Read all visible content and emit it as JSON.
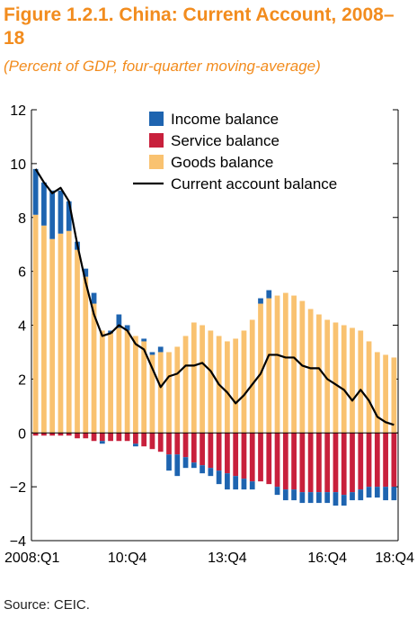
{
  "title": "Figure 1.2.1. China: Current Account, 2008–18",
  "subtitle": "(Percent of GDP, four-quarter moving-average)",
  "source": "Source: CEIC.",
  "colors": {
    "income": "#1E64B0",
    "service": "#C8203C",
    "goods": "#F9C270",
    "current": "#000000",
    "title": "#F28C1E"
  },
  "chart_data": {
    "type": "bar",
    "stacked": true,
    "ylim": [
      -4,
      12
    ],
    "yticks": [
      -4,
      -2,
      0,
      2,
      4,
      6,
      8,
      10,
      12
    ],
    "xtick_labels": [
      "2008:Q1",
      "10:Q4",
      "13:Q4",
      "16:Q4",
      "18:Q4"
    ],
    "xtick_index": [
      0,
      11,
      23,
      35,
      43
    ],
    "legend": [
      "Income balance",
      "Service balance",
      "Goods balance",
      "Current account balance"
    ],
    "categories": [
      "2008:Q1",
      "2008:Q2",
      "2008:Q3",
      "2008:Q4",
      "2009:Q1",
      "2009:Q2",
      "2009:Q3",
      "2009:Q4",
      "2010:Q1",
      "2010:Q2",
      "2010:Q3",
      "2010:Q4",
      "2011:Q1",
      "2011:Q2",
      "2011:Q3",
      "2011:Q4",
      "2012:Q1",
      "2012:Q2",
      "2012:Q3",
      "2012:Q4",
      "2013:Q1",
      "2013:Q2",
      "2013:Q3",
      "2013:Q4",
      "2014:Q1",
      "2014:Q2",
      "2014:Q3",
      "2014:Q4",
      "2015:Q1",
      "2015:Q2",
      "2015:Q3",
      "2015:Q4",
      "2016:Q1",
      "2016:Q2",
      "2016:Q3",
      "2016:Q4",
      "2017:Q1",
      "2017:Q2",
      "2017:Q3",
      "2017:Q4",
      "2018:Q1",
      "2018:Q2",
      "2018:Q3",
      "2018:Q4"
    ],
    "series": [
      {
        "name": "Goods balance",
        "values": [
          8.1,
          7.7,
          7.2,
          7.4,
          7.5,
          6.8,
          5.8,
          4.8,
          3.8,
          3.7,
          3.9,
          3.8,
          3.6,
          3.4,
          2.9,
          3.0,
          3.0,
          3.2,
          3.6,
          4.1,
          4.0,
          3.8,
          3.6,
          3.4,
          3.5,
          3.8,
          4.2,
          4.8,
          5.0,
          5.1,
          5.2,
          5.1,
          4.9,
          4.6,
          4.4,
          4.2,
          4.1,
          4.0,
          3.9,
          3.8,
          3.4,
          3.0,
          2.9,
          2.8
        ]
      },
      {
        "name": "Service balance",
        "values": [
          -0.1,
          -0.1,
          -0.1,
          -0.1,
          -0.1,
          -0.2,
          -0.2,
          -0.3,
          -0.3,
          -0.3,
          -0.3,
          -0.3,
          -0.4,
          -0.5,
          -0.6,
          -0.7,
          -0.8,
          -0.8,
          -0.9,
          -1.1,
          -1.2,
          -1.3,
          -1.4,
          -1.5,
          -1.6,
          -1.7,
          -1.8,
          -1.8,
          -1.9,
          -2.0,
          -2.1,
          -2.1,
          -2.2,
          -2.2,
          -2.2,
          -2.2,
          -2.2,
          -2.3,
          -2.2,
          -2.1,
          -2.0,
          -2.0,
          -2.0,
          -2.0
        ]
      },
      {
        "name": "Income balance",
        "values": [
          1.7,
          1.6,
          1.8,
          1.6,
          1.1,
          0.3,
          0.3,
          0.4,
          -0.1,
          0.1,
          0.5,
          0.2,
          -0.1,
          0.1,
          0.1,
          0.2,
          -0.6,
          -0.8,
          -0.4,
          -0.2,
          -0.3,
          -0.3,
          -0.5,
          -0.6,
          -0.5,
          -0.4,
          -0.3,
          0.2,
          0.3,
          -0.3,
          -0.4,
          -0.4,
          -0.4,
          -0.4,
          -0.4,
          -0.4,
          -0.5,
          -0.4,
          -0.3,
          -0.4,
          -0.4,
          -0.4,
          -0.5,
          -0.5
        ]
      },
      {
        "name": "Current account balance",
        "type": "line",
        "values": [
          9.8,
          9.3,
          8.9,
          9.1,
          8.6,
          7.0,
          5.6,
          4.4,
          3.6,
          3.7,
          4.0,
          3.8,
          3.3,
          3.1,
          2.4,
          1.7,
          2.1,
          2.2,
          2.5,
          2.5,
          2.6,
          2.3,
          1.8,
          1.5,
          1.1,
          1.4,
          1.8,
          2.2,
          2.9,
          2.9,
          2.8,
          2.8,
          2.5,
          2.4,
          2.4,
          2.0,
          1.8,
          1.6,
          1.2,
          1.6,
          1.2,
          0.6,
          0.4,
          0.3
        ]
      }
    ]
  }
}
